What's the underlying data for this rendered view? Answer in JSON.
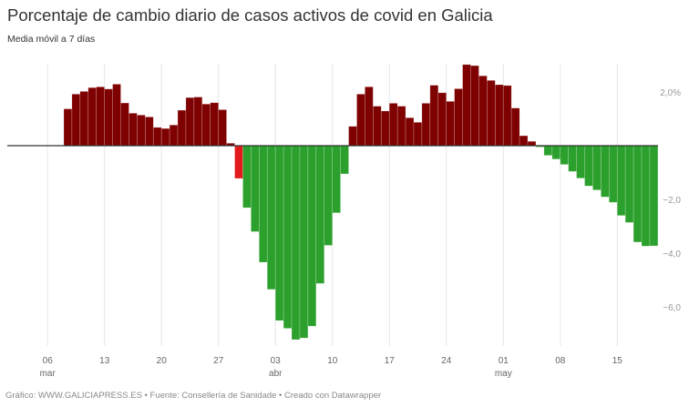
{
  "header": {
    "title": "Porcentaje de cambio diario de casos activos de covid en Galicia",
    "subtitle": "Media móvil a 7 días"
  },
  "footer": {
    "text": "Gráfico: WWW.GALICIAPRESS.ES • Fuente: Consellería de Sanidade • Creado con Datawrapper"
  },
  "colors": {
    "positive": "#7f0000",
    "negative": "#2ca02c",
    "highlight": "#e31a1c",
    "grid": "#e6e6e6",
    "axis_text": "#999999",
    "zero_line": "#333333"
  },
  "chart_data": {
    "type": "bar",
    "title": "Porcentaje de cambio diario de casos activos de covid en Galicia",
    "subtitle": "Media móvil a 7 días",
    "xlabel": "",
    "ylabel": "",
    "ylim": [
      -7.3,
      3.0
    ],
    "grid": true,
    "y_ticks": [
      {
        "value": 2,
        "label": "2,0%"
      },
      {
        "value": -2,
        "label": "−2,0"
      },
      {
        "value": -4,
        "label": "−4,0"
      },
      {
        "value": -6,
        "label": "−6,0"
      }
    ],
    "x_ticks": [
      {
        "day": -2,
        "label": "06",
        "sub": "mar"
      },
      {
        "day": 5,
        "label": "13",
        "sub": ""
      },
      {
        "day": 12,
        "label": "20",
        "sub": ""
      },
      {
        "day": 19,
        "label": "27",
        "sub": ""
      },
      {
        "day": 26,
        "label": "03",
        "sub": "abr"
      },
      {
        "day": 33,
        "label": "10",
        "sub": ""
      },
      {
        "day": 40,
        "label": "17",
        "sub": ""
      },
      {
        "day": 47,
        "label": "24",
        "sub": ""
      },
      {
        "day": 54,
        "label": "01",
        "sub": "may"
      },
      {
        "day": 61,
        "label": "08",
        "sub": ""
      },
      {
        "day": 68,
        "label": "15",
        "sub": ""
      }
    ],
    "start_date": "08 mar",
    "end_date": "19 may",
    "highlight_index": 21,
    "values": [
      1.37,
      1.92,
      2.02,
      2.16,
      2.19,
      2.11,
      2.29,
      1.59,
      1.21,
      1.14,
      1.07,
      0.68,
      0.64,
      0.77,
      1.32,
      1.79,
      1.81,
      1.55,
      1.6,
      1.34,
      0.09,
      -1.22,
      -2.31,
      -3.2,
      -4.34,
      -5.35,
      -6.51,
      -6.8,
      -7.22,
      -7.16,
      -6.72,
      -5.13,
      -3.71,
      -2.5,
      -1.05,
      0.72,
      1.92,
      2.19,
      1.47,
      1.29,
      1.58,
      1.47,
      1.04,
      0.87,
      1.58,
      2.25,
      1.97,
      1.65,
      2.12,
      3.02,
      2.98,
      2.6,
      2.43,
      2.27,
      2.24,
      1.4,
      0.37,
      0.16,
      -0.05,
      -0.36,
      -0.5,
      -0.7,
      -0.96,
      -1.21,
      -1.5,
      -1.65,
      -1.91,
      -2.11,
      -2.6,
      -2.86,
      -3.59,
      -3.74,
      -3.73
    ]
  }
}
